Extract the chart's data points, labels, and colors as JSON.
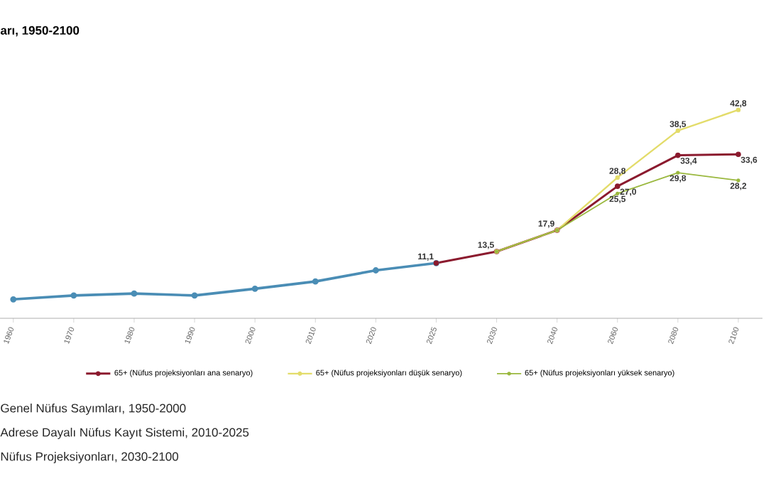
{
  "chart_data": {
    "type": "line",
    "title": "arı, 1950-2100",
    "categories": [
      "1960",
      "1970",
      "1980",
      "1990",
      "2000",
      "2010",
      "2020",
      "2025",
      "2030",
      "2040",
      "2060",
      "2080",
      "2100"
    ],
    "series": [
      {
        "color": "#4a8db5",
        "values": [
          3.6,
          4.4,
          4.8,
          4.4,
          5.8,
          7.3,
          9.6,
          11.1,
          null,
          null,
          null,
          null,
          null
        ],
        "value_labels": [
          null,
          null,
          null,
          null,
          null,
          null,
          null,
          "11,1",
          null,
          null,
          null,
          null,
          null
        ]
      },
      {
        "name": "65+ (Nüfus projeksiyonları ana senaryo)",
        "color": "#8b1a2e",
        "values": [
          null,
          null,
          null,
          null,
          null,
          null,
          null,
          11.1,
          13.5,
          17.9,
          27.0,
          33.4,
          33.6
        ],
        "value_labels": [
          null,
          null,
          null,
          null,
          null,
          null,
          null,
          null,
          "13,5",
          "17,9",
          "27,0",
          "33,4",
          "33,6"
        ]
      },
      {
        "name": "65+ (Nüfus projeksiyonları düşük senaryo)",
        "color": "#e3dc6a",
        "values": [
          null,
          null,
          null,
          null,
          null,
          null,
          null,
          null,
          13.5,
          17.9,
          28.8,
          38.5,
          42.8
        ],
        "value_labels": [
          null,
          null,
          null,
          null,
          null,
          null,
          null,
          null,
          null,
          null,
          "28,8",
          "38,5",
          "42,8"
        ]
      },
      {
        "name": "65+ (Nüfus projeksiyonları yüksek senaryo)",
        "color": "#9ab83e",
        "values": [
          null,
          null,
          null,
          null,
          null,
          null,
          null,
          null,
          13.5,
          17.9,
          25.5,
          29.8,
          28.2
        ],
        "value_labels": [
          null,
          null,
          null,
          null,
          null,
          null,
          null,
          null,
          null,
          null,
          "25,5",
          "29,8",
          "28,2"
        ]
      }
    ],
    "tick_labels": "x",
    "marker": "circle",
    "line_style": "solid",
    "legend": "bottom",
    "annotations": [
      "Genel Nüfus Sayımları, 1950-2000",
      "Adrese Dayalı Nüfus Kayıt Sistemi, 2010-2025",
      "Nüfus Projeksiyonları, 2030-2100"
    ]
  }
}
